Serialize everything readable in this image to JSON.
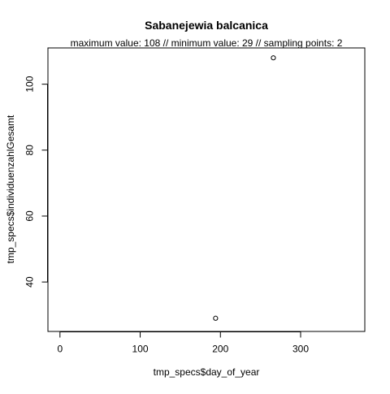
{
  "chart_data": {
    "type": "scatter",
    "title": "Sabanejewia balcanica",
    "subtitle": "maximum value: 108  //  minimum value: 29  // sampling points: 2",
    "xlabel": "tmp_specs$day_of_year",
    "ylabel": "tmp_specs$individuenzahlGesamt",
    "xlim": [
      -15,
      380
    ],
    "ylim": [
      25,
      111
    ],
    "x_ticks": [
      0,
      100,
      200,
      300
    ],
    "y_ticks": [
      40,
      60,
      80,
      100
    ],
    "x_tick_labels": [
      "0",
      "100",
      "200",
      "300"
    ],
    "y_tick_labels": [
      "40",
      "60",
      "80",
      "100"
    ],
    "points": [
      {
        "x": 194,
        "y": 29
      },
      {
        "x": 266,
        "y": 108
      }
    ],
    "marker": "open-circle",
    "grid": false,
    "legend": "none",
    "colors": {
      "background": "#ffffff",
      "foreground": "#000000"
    }
  }
}
